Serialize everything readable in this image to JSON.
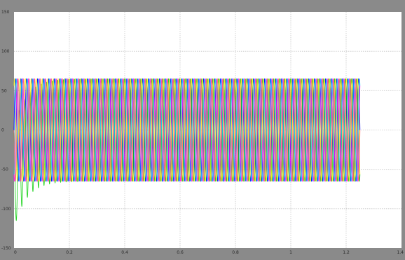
{
  "chart_data": {
    "type": "line",
    "title": "",
    "xlabel": "",
    "ylabel": "",
    "xlim": [
      0,
      1.4
    ],
    "ylim": [
      -150,
      150
    ],
    "grid": true,
    "x_ticks": [
      0,
      0.2,
      0.4,
      0.6,
      0.8,
      1,
      1.2,
      1.4
    ],
    "x_tick_labels": [
      "0",
      "0.2",
      "0.4",
      "0.6",
      "0.8",
      "1",
      "1.2",
      "1.4"
    ],
    "y_ticks": [
      150,
      100,
      50,
      0,
      -50,
      -100,
      -150
    ],
    "y_tick_labels": [
      "150",
      "100",
      "50",
      "0",
      "-50",
      "-100",
      "-150"
    ],
    "signal": {
      "t_end": 1.25,
      "frequency_hz": 50,
      "steady_amplitude": 65,
      "initial_negative_peak": -128
    },
    "series": [
      {
        "color": "#0000ff",
        "phase_deg": 0,
        "dc_offset": 0
      },
      {
        "color": "#00cc00",
        "phase_deg": 120,
        "dc_offset": -60
      },
      {
        "color": "#ff00ff",
        "phase_deg": 240,
        "dc_offset": 0
      },
      {
        "color": "#ffff00",
        "phase_deg": 60,
        "dc_offset": 0
      },
      {
        "color": "#00bfff",
        "phase_deg": 300,
        "dc_offset": 0
      },
      {
        "color": "#ff6060",
        "phase_deg": 180,
        "dc_offset": 0
      }
    ],
    "colors": {
      "frame": "#8a8a8a",
      "plot_bg": "#ffffff",
      "grid": "#c8c8c8"
    }
  }
}
